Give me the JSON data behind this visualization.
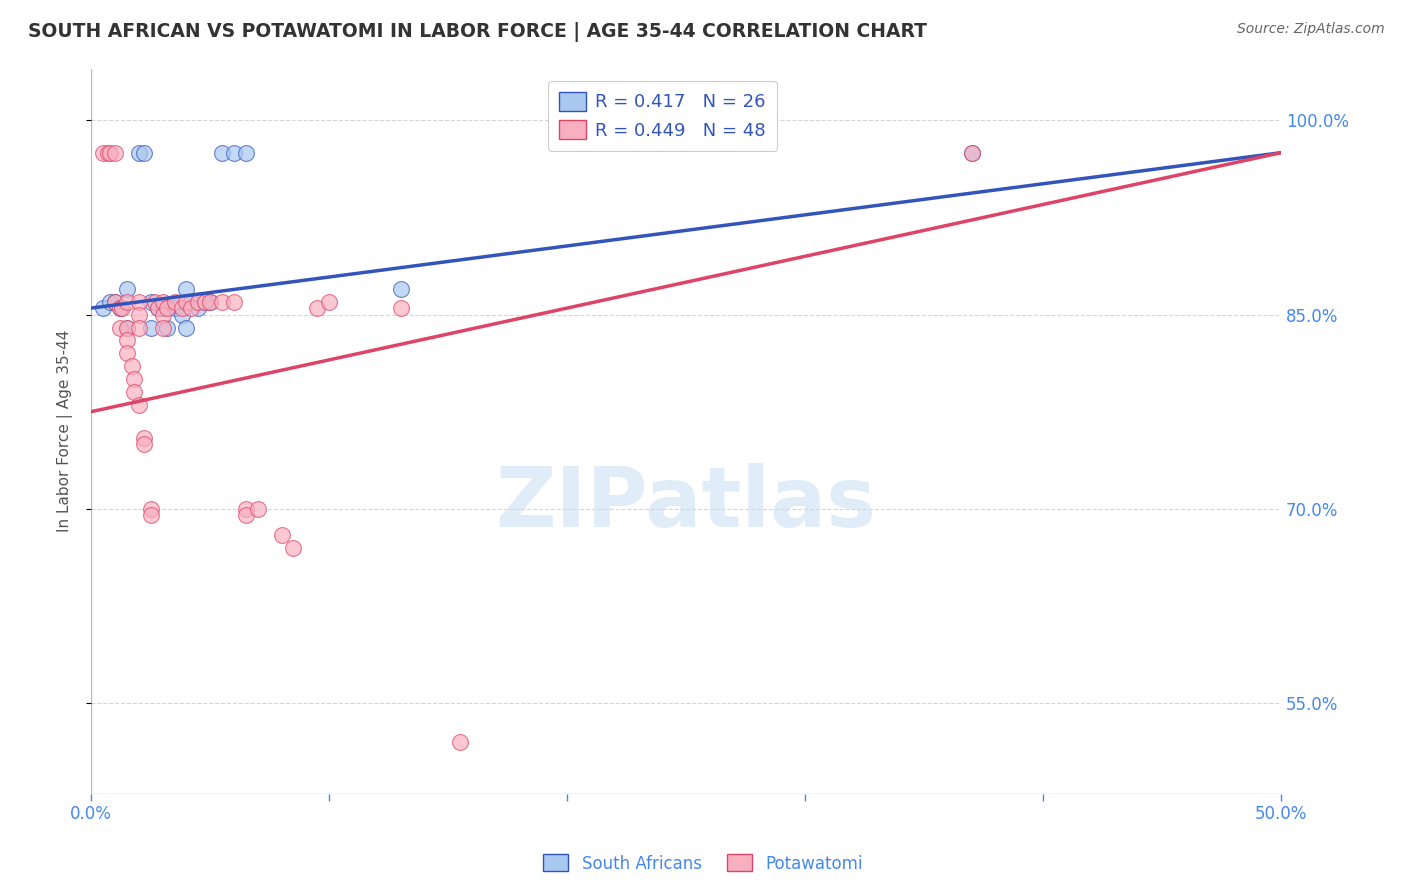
{
  "title": "SOUTH AFRICAN VS POTAWATOMI IN LABOR FORCE | AGE 35-44 CORRELATION CHART",
  "source": "Source: ZipAtlas.com",
  "ylabel": "In Labor Force | Age 35-44",
  "yticks": [
    1.0,
    0.85,
    0.7,
    0.55
  ],
  "ytick_labels": [
    "100.0%",
    "85.0%",
    "70.0%",
    "55.0%"
  ],
  "xlim": [
    0.0,
    0.5
  ],
  "ylim": [
    0.48,
    1.04
  ],
  "legend_blue_label": "R = 0.417   N = 26",
  "legend_pink_label": "R = 0.449   N = 48",
  "blue_color": "#A8C8F0",
  "pink_color": "#F8B0C0",
  "blue_line_color": "#3355BB",
  "pink_line_color": "#DD4466",
  "blue_scatter": [
    [
      0.005,
      0.855
    ],
    [
      0.008,
      0.86
    ],
    [
      0.01,
      0.86
    ],
    [
      0.012,
      0.855
    ],
    [
      0.015,
      0.87
    ],
    [
      0.015,
      0.84
    ],
    [
      0.02,
      0.975
    ],
    [
      0.022,
      0.975
    ],
    [
      0.025,
      0.86
    ],
    [
      0.025,
      0.84
    ],
    [
      0.028,
      0.855
    ],
    [
      0.03,
      0.855
    ],
    [
      0.032,
      0.84
    ],
    [
      0.035,
      0.855
    ],
    [
      0.038,
      0.85
    ],
    [
      0.04,
      0.87
    ],
    [
      0.04,
      0.84
    ],
    [
      0.042,
      0.86
    ],
    [
      0.045,
      0.855
    ],
    [
      0.048,
      0.86
    ],
    [
      0.05,
      0.86
    ],
    [
      0.055,
      0.975
    ],
    [
      0.06,
      0.975
    ],
    [
      0.065,
      0.975
    ],
    [
      0.13,
      0.87
    ],
    [
      0.37,
      0.975
    ]
  ],
  "pink_scatter": [
    [
      0.005,
      0.975
    ],
    [
      0.007,
      0.975
    ],
    [
      0.008,
      0.975
    ],
    [
      0.01,
      0.975
    ],
    [
      0.01,
      0.86
    ],
    [
      0.012,
      0.855
    ],
    [
      0.012,
      0.84
    ],
    [
      0.013,
      0.855
    ],
    [
      0.015,
      0.86
    ],
    [
      0.015,
      0.84
    ],
    [
      0.015,
      0.83
    ],
    [
      0.015,
      0.82
    ],
    [
      0.017,
      0.81
    ],
    [
      0.018,
      0.8
    ],
    [
      0.018,
      0.79
    ],
    [
      0.02,
      0.86
    ],
    [
      0.02,
      0.85
    ],
    [
      0.02,
      0.84
    ],
    [
      0.02,
      0.78
    ],
    [
      0.022,
      0.755
    ],
    [
      0.022,
      0.75
    ],
    [
      0.025,
      0.7
    ],
    [
      0.025,
      0.695
    ],
    [
      0.027,
      0.86
    ],
    [
      0.028,
      0.855
    ],
    [
      0.03,
      0.86
    ],
    [
      0.03,
      0.85
    ],
    [
      0.03,
      0.84
    ],
    [
      0.032,
      0.855
    ],
    [
      0.035,
      0.86
    ],
    [
      0.038,
      0.855
    ],
    [
      0.04,
      0.86
    ],
    [
      0.042,
      0.855
    ],
    [
      0.045,
      0.86
    ],
    [
      0.048,
      0.86
    ],
    [
      0.05,
      0.86
    ],
    [
      0.055,
      0.86
    ],
    [
      0.06,
      0.86
    ],
    [
      0.065,
      0.7
    ],
    [
      0.065,
      0.695
    ],
    [
      0.07,
      0.7
    ],
    [
      0.08,
      0.68
    ],
    [
      0.085,
      0.67
    ],
    [
      0.095,
      0.855
    ],
    [
      0.1,
      0.86
    ],
    [
      0.13,
      0.855
    ],
    [
      0.155,
      0.52
    ],
    [
      0.37,
      0.975
    ]
  ],
  "watermark_text": "ZIPatlas",
  "background_color": "#FFFFFF",
  "grid_color": "#CCCCCC",
  "tick_color": "#4488EE",
  "title_color": "#333333",
  "source_color": "#666666"
}
